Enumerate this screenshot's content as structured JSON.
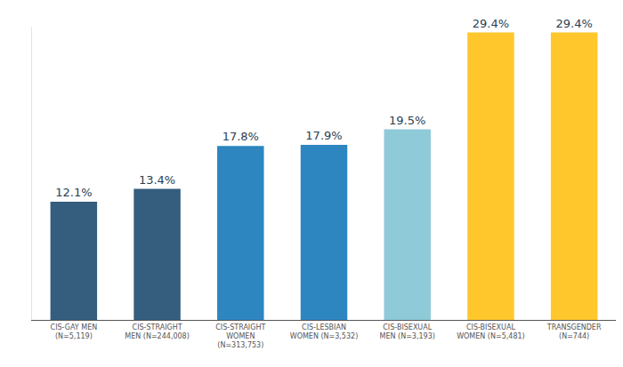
{
  "chart_data": {
    "type": "bar",
    "categories": [
      "CIS-GAY MEN\n(N=5,119)",
      "CIS-STRAIGHT\nMEN (N=244,008)",
      "CIS-STRAIGHT\nWOMEN\n(N=313,753)",
      "CIS-LESBIAN\nWOMEN (N=3,532)",
      "CIS-BISEXUAL\nMEN (N=3,193)",
      "CIS-BISEXUAL\nWOMEN (N=5,481)",
      "TRANSGENDER\n(N=744)"
    ],
    "values": [
      12.1,
      13.4,
      17.8,
      17.9,
      19.5,
      29.4,
      29.4
    ],
    "value_labels": [
      "12.1%",
      "13.4%",
      "17.8%",
      "17.9%",
      "19.5%",
      "29.4%",
      "29.4%"
    ],
    "colors": [
      "#345d7e",
      "#345d7e",
      "#2e86c1",
      "#2e86c1",
      "#8ecad8",
      "#ffc72c",
      "#ffc72c"
    ],
    "ylim": [
      0,
      30
    ],
    "data_labels": true,
    "tick_labels": "x",
    "grid": false
  }
}
